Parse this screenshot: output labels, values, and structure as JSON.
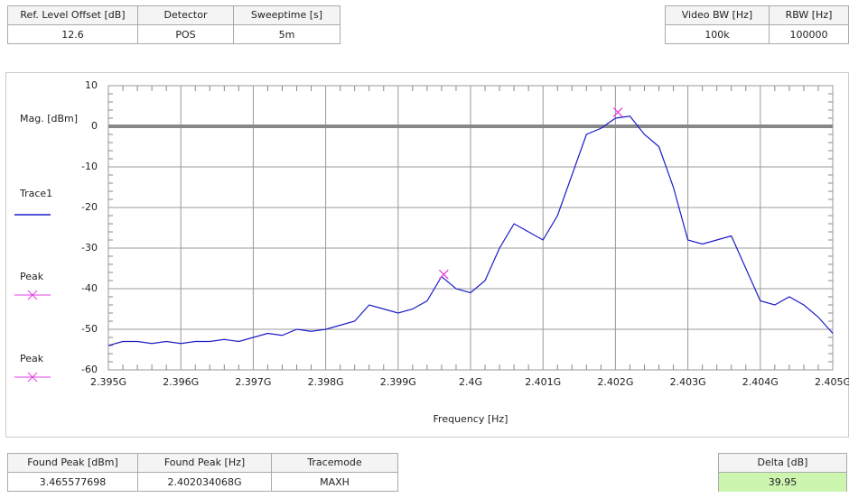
{
  "header": {
    "fields": [
      {
        "label": "Ref. Level Offset [dB]",
        "value": "12.6"
      },
      {
        "label": "Detector",
        "value": "POS"
      },
      {
        "label": "Sweeptime [s]",
        "value": "5m"
      },
      {
        "label": "Video BW [Hz]",
        "value": "100k"
      },
      {
        "label": "RBW [Hz]",
        "value": "100000"
      }
    ]
  },
  "chart_data": {
    "type": "line",
    "xlabel": "Frequency [Hz]",
    "ylabel": "Mag. [dBm]",
    "xlim": [
      2395000000,
      2405000000
    ],
    "xticks": [
      {
        "value": 2395000000,
        "label": "2.395G"
      },
      {
        "value": 2396000000,
        "label": "2.396G"
      },
      {
        "value": 2397000000,
        "label": "2.397G"
      },
      {
        "value": 2398000000,
        "label": "2.398G"
      },
      {
        "value": 2399000000,
        "label": "2.399G"
      },
      {
        "value": 2400000000,
        "label": "2.4G"
      },
      {
        "value": 2401000000,
        "label": "2.401G"
      },
      {
        "value": 2402000000,
        "label": "2.402G"
      },
      {
        "value": 2403000000,
        "label": "2.403G"
      },
      {
        "value": 2404000000,
        "label": "2.404G"
      },
      {
        "value": 2405000000,
        "label": "2.405G"
      }
    ],
    "ylim": [
      -60,
      10
    ],
    "yticks": [
      -60,
      -50,
      -40,
      -30,
      -20,
      -10,
      0,
      10
    ],
    "grid": true,
    "reference_level": 0,
    "series": [
      {
        "name": "Trace1",
        "color": "#1c1cc8",
        "style": "line",
        "x": [
          2395000000,
          2395200000,
          2395400000,
          2395600000,
          2395800000,
          2396000000,
          2396200000,
          2396400000,
          2396600000,
          2396800000,
          2397000000,
          2397200000,
          2397400000,
          2397600000,
          2397800000,
          2398000000,
          2398200000,
          2398400000,
          2398600000,
          2398800000,
          2399000000,
          2399200000,
          2399400000,
          2399600000,
          2399800000,
          2400000000,
          2400200000,
          2400400000,
          2400600000,
          2400800000,
          2401000000,
          2401200000,
          2401400000,
          2401600000,
          2401800000,
          2402000000,
          2402200000,
          2402400000,
          2402600000,
          2402800000,
          2403000000,
          2403200000,
          2403400000,
          2403600000,
          2403800000,
          2404000000,
          2404200000,
          2404400000,
          2404600000,
          2404800000,
          2405000000
        ],
        "values": [
          -54,
          -53,
          -53,
          -53.5,
          -53,
          -53.5,
          -53,
          -53,
          -52.5,
          -53,
          -52,
          -51,
          -51.5,
          -50,
          -50.5,
          -50,
          -49,
          -48,
          -44,
          -45,
          -46,
          -45,
          -43,
          -37,
          -40,
          -41,
          -38,
          -30,
          -24,
          -26,
          -28,
          -22,
          -12,
          -2,
          -0.5,
          2,
          2.5,
          -2,
          -5,
          -15,
          -28,
          -29,
          -28,
          -27,
          -35,
          -43,
          -44,
          -42,
          -44,
          -47,
          -51
        ]
      },
      {
        "name": "Peak",
        "color": "#e040e0",
        "style": "marker",
        "x": [
          2402034068
        ],
        "values": [
          3.465577698
        ]
      },
      {
        "name": "Peak",
        "color": "#e040e0",
        "style": "marker",
        "x": [
          2399630000
        ],
        "values": [
          -36.48
        ]
      }
    ]
  },
  "footer": {
    "fields": [
      {
        "label": "Found Peak [dBm]",
        "value": "3.465577698"
      },
      {
        "label": "Found Peak [Hz]",
        "value": "2.402034068G"
      },
      {
        "label": "Tracemode",
        "value": "MAXH"
      }
    ],
    "delta": {
      "label": "Delta [dB]",
      "value": "39.95"
    }
  }
}
